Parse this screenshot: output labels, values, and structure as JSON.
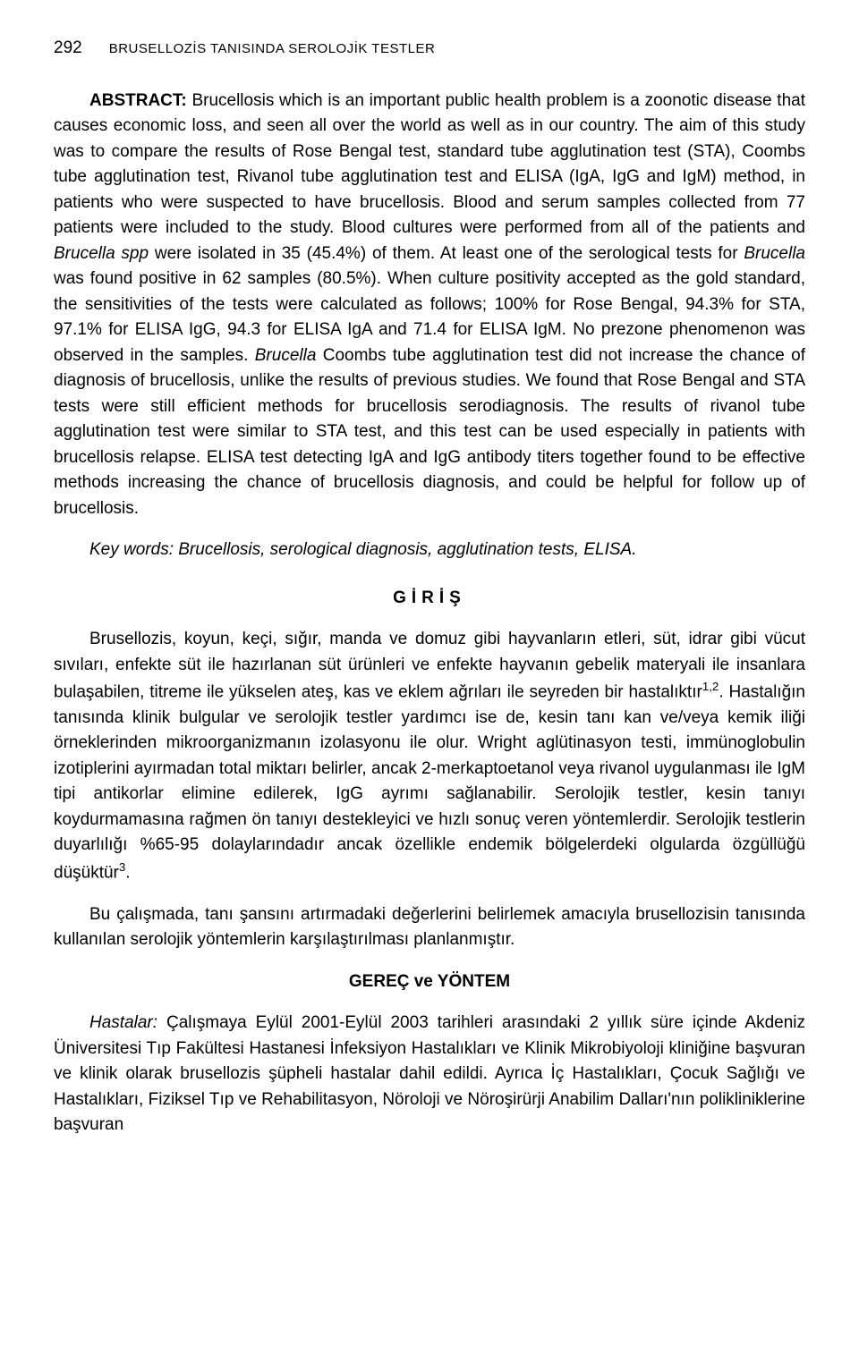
{
  "page_number": "292",
  "running_title": "BRUSELLOZİS TANISINDA SEROLOJİK TESTLER",
  "abstract": {
    "label": "ABSTRACT:",
    "text": " Brucellosis which is an important public health problem is a zoonotic disease that causes economic loss, and seen all over the world as well as in our country. The aim of this study was to compare the results of Rose Bengal test, standard tube agglutination test (STA), Coombs tube agglutination test, Rivanol tube agglutination test and ELISA (IgA, IgG and IgM) method, in patients who were suspected to have brucellosis. Blood and serum samples collected from 77 patients were included to the study. Blood cultures were performed from all of the patients and ",
    "italic1": "Brucella spp",
    "text2": " were isolated in 35 (45.4%) of them. At least one of the serological tests for ",
    "italic2": "Brucella",
    "text3": " was found positive in 62 samples (80.5%). When culture positivity accepted as the gold standard, the sensitivities of the tests were calculated as follows; 100% for Rose Bengal, 94.3% for STA, 97.1% for ELISA IgG, 94.3 for ELISA IgA and 71.4 for ELISA IgM. No prezone phenomenon was observed in the samples. ",
    "italic3": "Brucella",
    "text4": " Coombs tube agglutination test did not increase the chance of diagnosis of brucellosis, unlike the results of previous studies. We found that Rose Bengal and STA tests were still efficient methods for brucellosis serodiagnosis. The results of rivanol tube agglutination test were similar to STA test, and this test can be used especially in patients with brucellosis relapse. ELISA test detecting IgA and IgG antibody titers together found to be effective methods increasing the chance of brucellosis diagnosis, and could be helpful for follow up of brucellosis."
  },
  "keywords": "Key words: Brucellosis, serological diagnosis, agglutination tests, ELISA.",
  "section1": {
    "heading": "GİRİŞ",
    "para1_part1": "Brusellozis, koyun, keçi, sığır, manda ve domuz gibi hayvanların etleri, süt, idrar gibi vücut sıvıları, enfekte süt ile hazırlanan süt ürünleri ve enfekte hayvanın gebelik materyali ile insanlara bulaşabilen, titreme ile yükselen ateş, kas ve eklem ağrıları ile seyreden bir hastalıktır",
    "sup1": "1,2",
    "para1_part2": ". Hastalığın tanısında klinik bulgular ve serolojik testler yardımcı ise de, kesin tanı kan ve/veya kemik iliği örneklerinden mikroorganizmanın izolasyonu ile olur. Wright aglütinasyon testi, immünoglobulin izotiplerini ayırmadan total miktarı belirler, ancak 2-merkaptoetanol veya rivanol uygulanması ile IgM tipi antikorlar elimine edilerek, IgG ayrımı sağlanabilir. Serolojik testler, kesin tanıyı koydurmamasına rağmen ön tanıyı destekleyici ve hızlı sonuç veren yöntemlerdir. Serolojik testlerin duyarlılığı %65-95 dolaylarındadır ancak özellikle endemik bölgelerdeki olgularda özgüllüğü düşüktür",
    "sup2": "3",
    "para1_part3": ".",
    "para2": "Bu çalışmada, tanı şansını artırmadaki değerlerini belirlemek amacıyla brusellozisin tanısında kullanılan serolojik yöntemlerin karşılaştırılması planlanmıştır."
  },
  "section2": {
    "heading": "GEREÇ ve YÖNTEM",
    "method_label": "Hastalar:",
    "para1": " Çalışmaya Eylül 2001-Eylül 2003 tarihleri arasındaki 2 yıllık süre içinde Akdeniz Üniversitesi Tıp Fakültesi Hastanesi İnfeksiyon Hastalıkları ve Klinik Mikrobiyoloji kliniğine başvuran ve klinik olarak brusellozis şüpheli hastalar dahil edildi. Ayrıca İç Hastalıkları, Çocuk Sağlığı ve Hastalıkları, Fiziksel Tıp ve Rehabilitasyon, Nöroloji ve Nöroşirürji Anabilim Dalları'nın polikliniklerine başvuran"
  }
}
